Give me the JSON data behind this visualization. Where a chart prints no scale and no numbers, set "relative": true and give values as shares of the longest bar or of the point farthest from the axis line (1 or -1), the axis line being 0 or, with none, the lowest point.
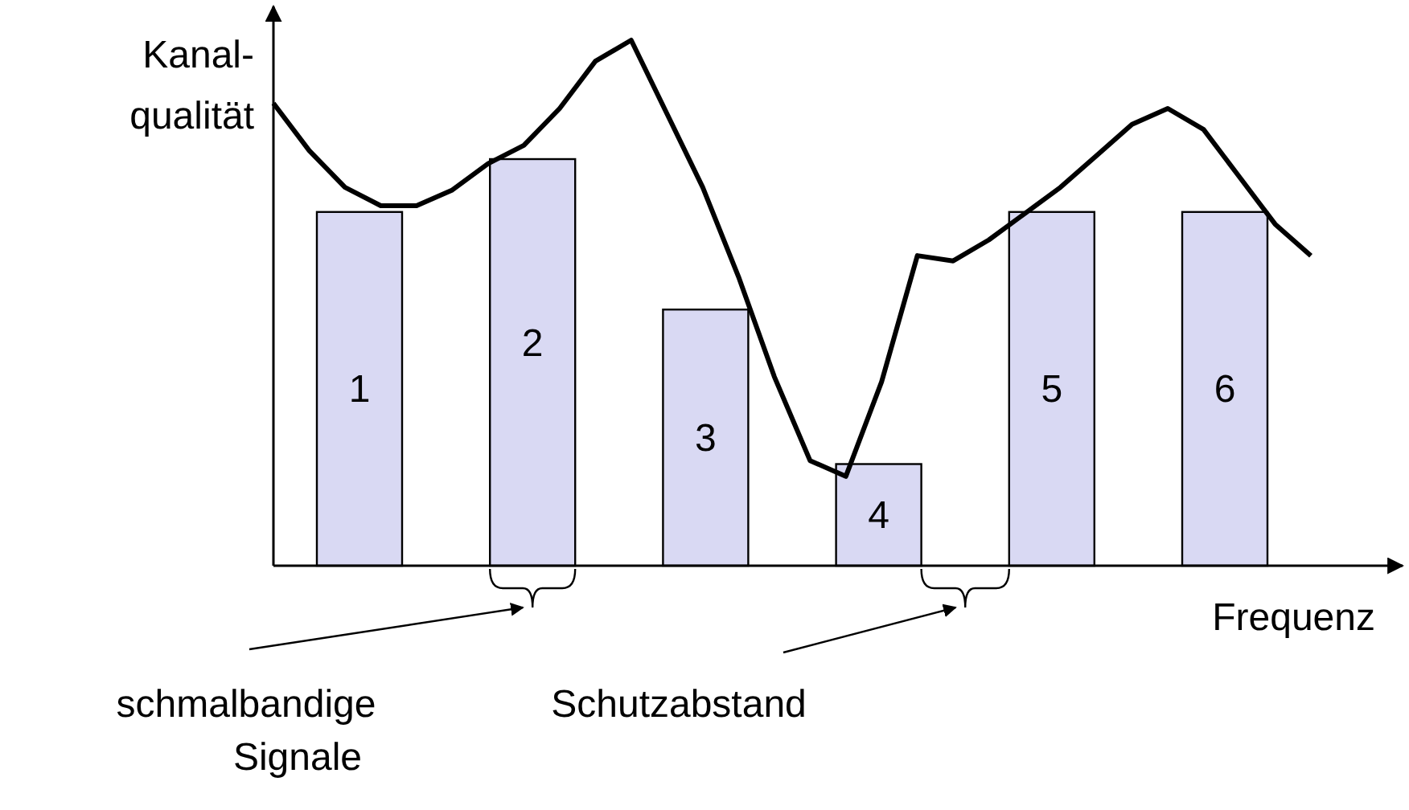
{
  "chart_data": [
    {
      "type": "bar",
      "relative": true,
      "xlabel": "Frequenz",
      "ylabel": "Kanal-\nqualität",
      "categories": [
        null,
        null,
        null,
        null,
        null,
        null
      ],
      "series": [
        {
          "color": "#d9d9f3",
          "values": [
            0.87,
            1,
            0.63,
            0.25,
            0.87,
            0.87
          ]
        }
      ],
      "annotations": [
        "1",
        "2",
        "3",
        "4",
        "5",
        "6",
        "schmalbandige\nSignale",
        "Schutzabstand"
      ]
    },
    {
      "type": "line",
      "relative": true,
      "categories": [
        null,
        null,
        null,
        null,
        null,
        null,
        null,
        null,
        null,
        null,
        null,
        null,
        null,
        null,
        null,
        null,
        null,
        null,
        null,
        null,
        null,
        null,
        null,
        null,
        null,
        null,
        null,
        null,
        null,
        null
      ],
      "series": [
        {
          "color": "#000000",
          "values": [
            0.88,
            0.79,
            0.72,
            0.685,
            0.685,
            0.715,
            0.765,
            0.8,
            0.87,
            0.96,
            1,
            0.86,
            0.72,
            0.55,
            0.36,
            0.2,
            0.17,
            0.35,
            0.59,
            0.58,
            0.62,
            0.67,
            0.72,
            0.78,
            0.84,
            0.87,
            0.83,
            0.74,
            0.65,
            0.59
          ]
        }
      ]
    }
  ]
}
